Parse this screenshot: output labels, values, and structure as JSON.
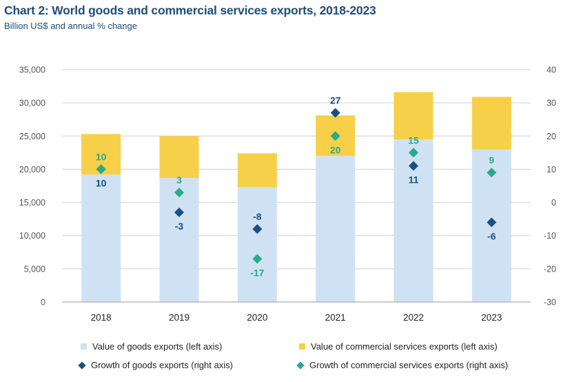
{
  "title": "Chart 2: World goods and commercial services exports, 2018-2023",
  "subtitle": "Billion US$ and annual % change",
  "colors": {
    "goods_bar": "#cfe2f3",
    "services_bar": "#f7d04a",
    "goods_growth": "#1b4f83",
    "services_growth": "#2aa98b",
    "axis_text": "#555555",
    "grid": "#d0d0d0"
  },
  "chart_data": {
    "type": "bar",
    "stacked": true,
    "categories": [
      "2018",
      "2019",
      "2020",
      "2021",
      "2022",
      "2023"
    ],
    "series": [
      {
        "name": "Value of goods exports (left axis)",
        "axis": "left",
        "kind": "bar",
        "values": [
          19200,
          18700,
          17300,
          22000,
          24500,
          23000
        ]
      },
      {
        "name": "Value of commercial services exports (left axis)",
        "axis": "left",
        "kind": "bar",
        "values": [
          6100,
          6300,
          5100,
          6100,
          7100,
          7900
        ]
      },
      {
        "name": "Growth of goods exports (right axis)",
        "axis": "right",
        "kind": "scatter",
        "values": [
          10,
          -3,
          -8,
          27,
          11,
          -6
        ],
        "labels": [
          "10",
          "-3",
          "-8",
          "27",
          "11",
          "-6"
        ]
      },
      {
        "name": "Growth of commercial services exports (right axis)",
        "axis": "right",
        "kind": "scatter",
        "values": [
          10,
          3,
          -17,
          20,
          15,
          9
        ],
        "labels": [
          "10",
          "3",
          "-17",
          "20",
          "15",
          "9"
        ]
      }
    ],
    "left_axis": {
      "ylim": [
        0,
        35000
      ],
      "ticks": [
        "0",
        "5,000",
        "10,000",
        "15,000",
        "20,000",
        "25,000",
        "30,000",
        "35,000"
      ]
    },
    "right_axis": {
      "ylim": [
        -30,
        40
      ],
      "ticks": [
        "-30",
        "-20",
        "-10",
        "0",
        "10",
        "20",
        "30",
        "40"
      ]
    },
    "grid": true,
    "legend_position": "bottom"
  }
}
